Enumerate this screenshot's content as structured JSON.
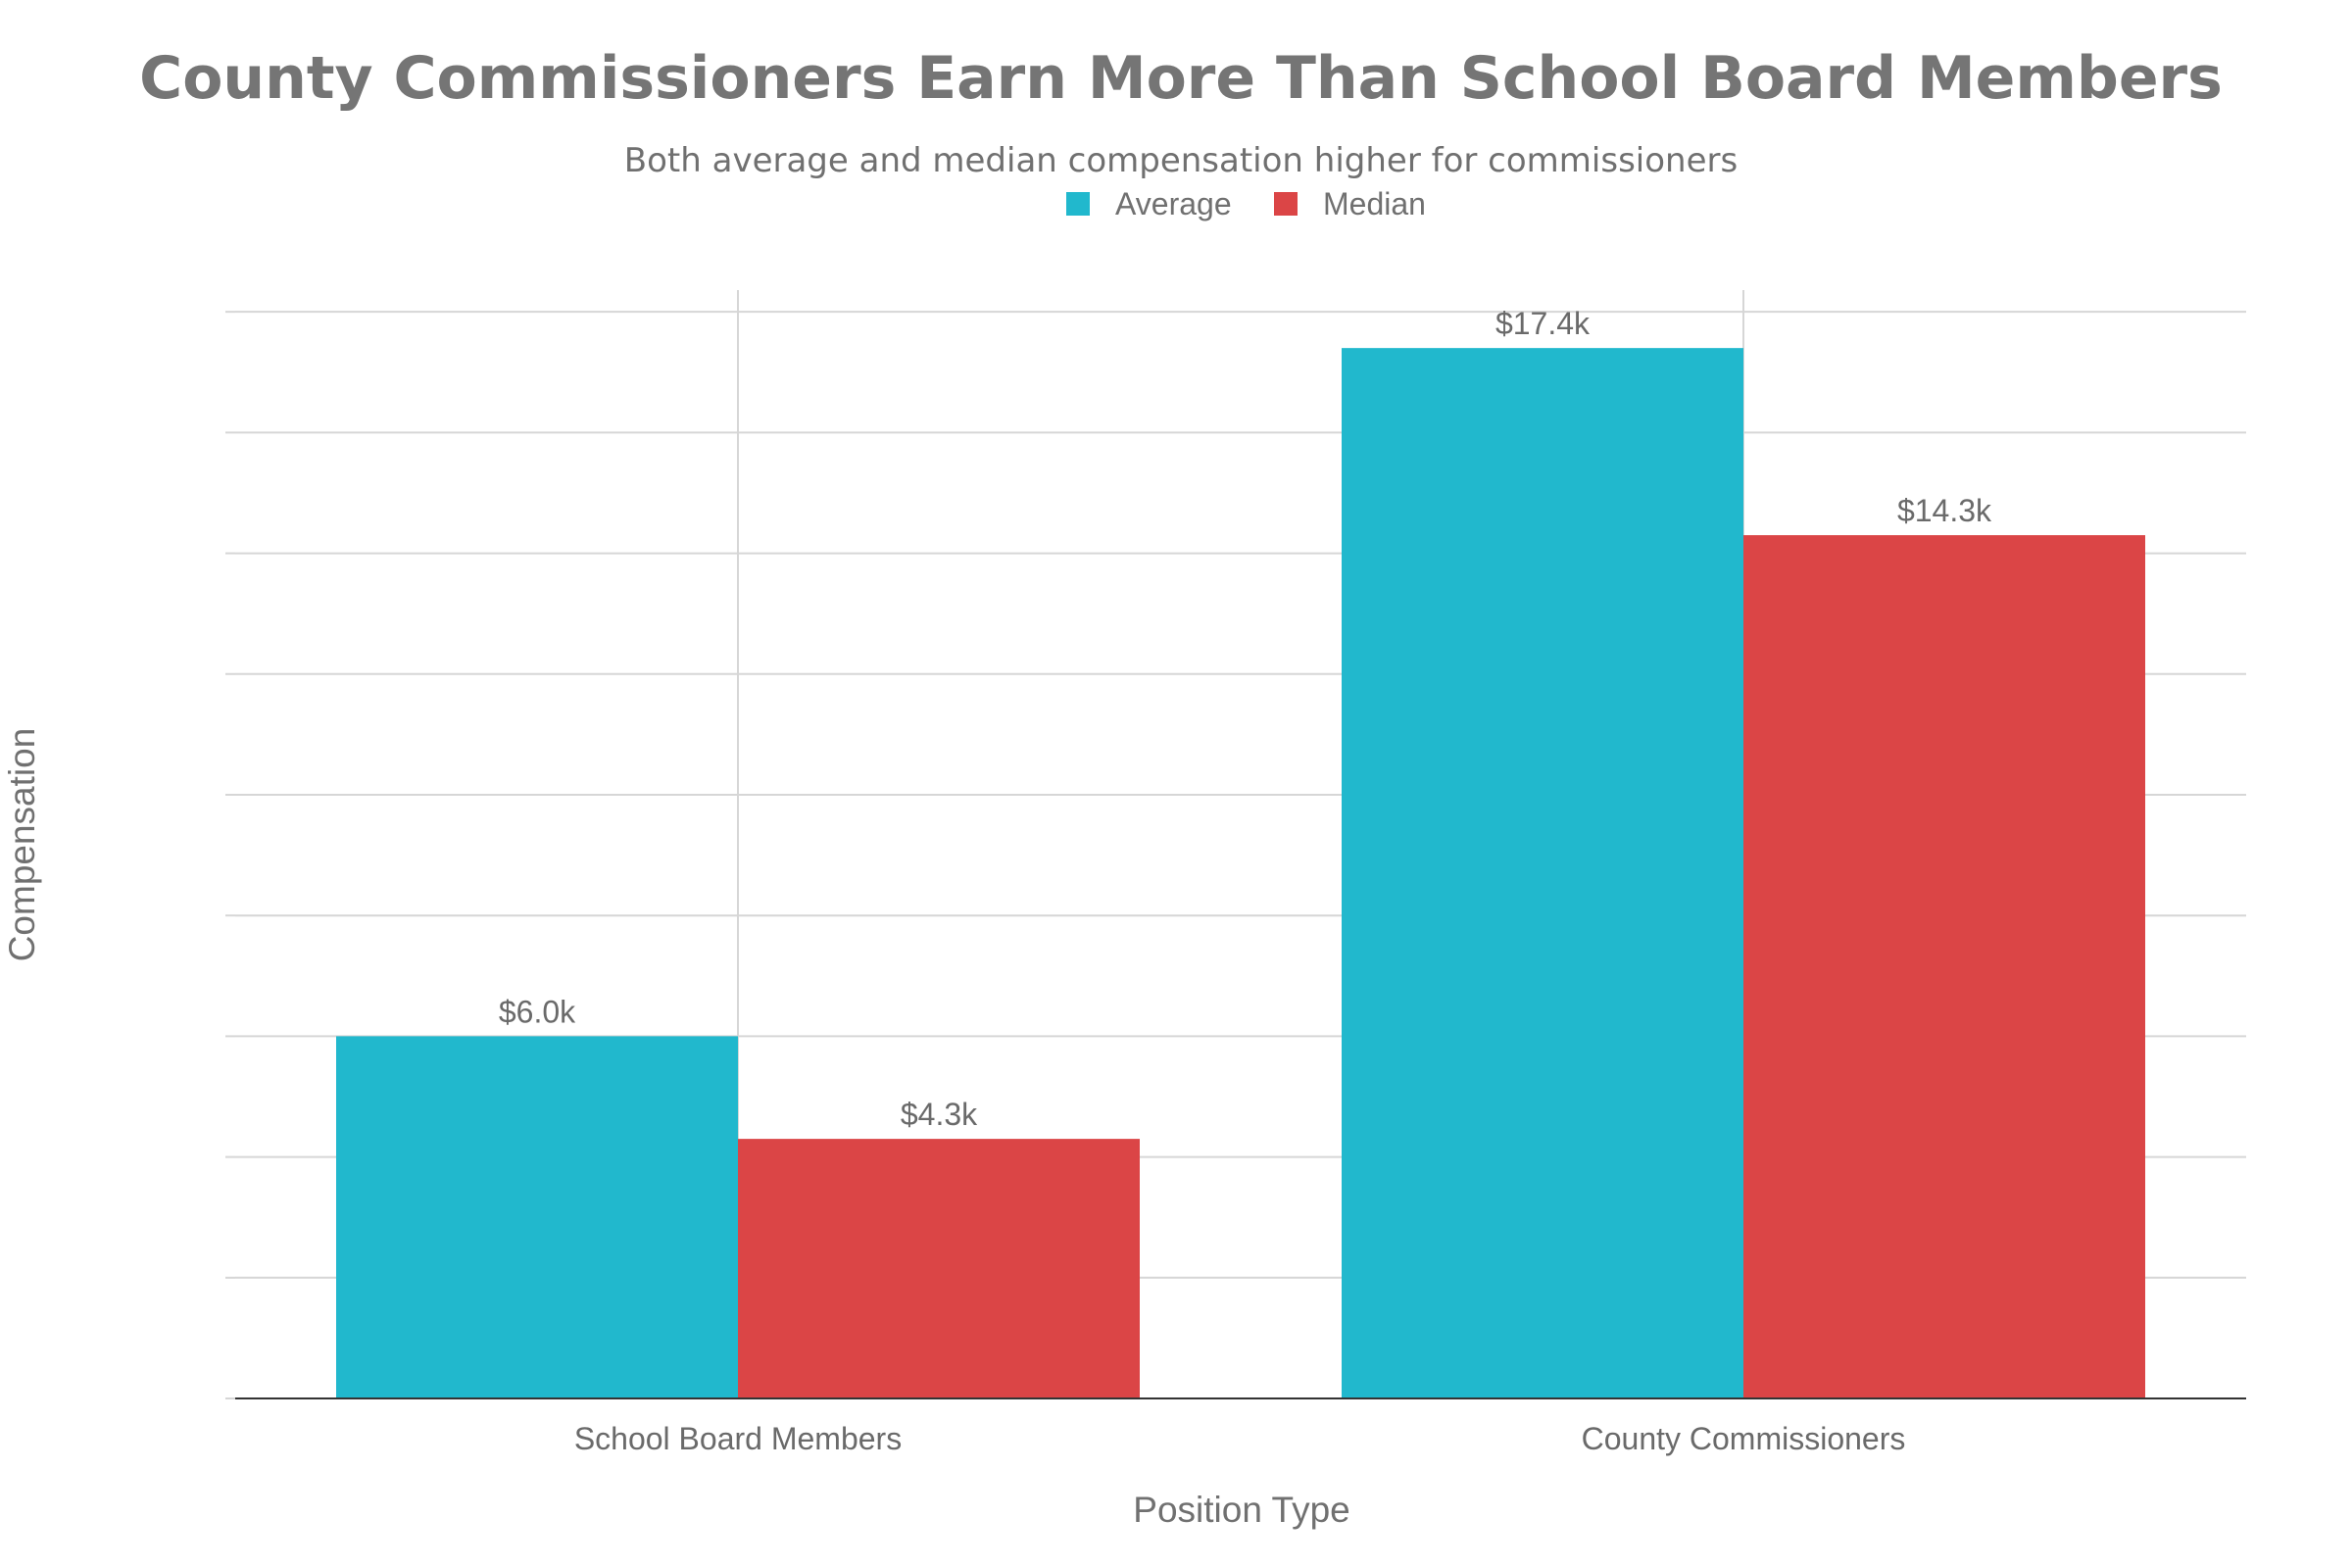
{
  "chart_data": {
    "type": "bar",
    "title": "County Commissioners Earn More Than School Board Members",
    "subtitle": "Both average and median compensation higher for commissioners",
    "xlabel": "Position Type",
    "ylabel": "Compensation",
    "categories": [
      "School Board Members",
      "County Commissioners"
    ],
    "series": [
      {
        "name": "Average",
        "color": "#21B8CD",
        "values": [
          6000,
          17400
        ],
        "labels": [
          "$6.0k",
          "$17.4k"
        ]
      },
      {
        "name": "Median",
        "color": "#DB4546",
        "values": [
          4300,
          14300
        ],
        "labels": [
          "$4.3k",
          "$14.3k"
        ]
      }
    ],
    "ylim": [
      0,
      18360
    ],
    "y_gridlines": [
      2000,
      4000,
      6000,
      8000,
      10000,
      12000,
      14000,
      16000,
      18000
    ],
    "y_tick_labels_visible": false,
    "grid": true,
    "legend_position": "top-center"
  }
}
